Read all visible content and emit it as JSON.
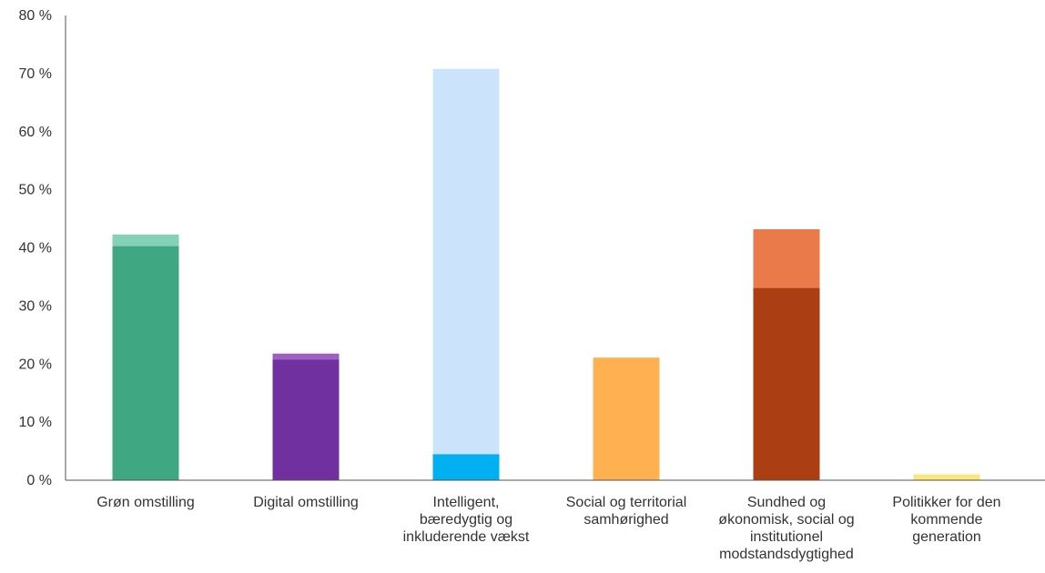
{
  "chart_data": {
    "type": "bar",
    "stacked": true,
    "grid": false,
    "ylim": [
      0,
      80
    ],
    "ytick_labels": [
      "0 %",
      "10 %",
      "20 %",
      "30 %",
      "40 %",
      "50 %",
      "60 %",
      "70 %",
      "80 %"
    ],
    "yticks": [
      0,
      10,
      20,
      30,
      40,
      50,
      60,
      70,
      80
    ],
    "categories": [
      [
        "Grøn omstilling"
      ],
      [
        "Digital omstilling"
      ],
      [
        "Intelligent,",
        "bæredygtig og",
        "inkluderende vækst"
      ],
      [
        "Social og territorial",
        "samhørighed"
      ],
      [
        "Sundhed og",
        "økonomisk, social og",
        "institutionel",
        "modstandsdygtighed"
      ],
      [
        "Politikker for den",
        "kommende",
        "generation"
      ]
    ],
    "segments": [
      [
        {
          "value": 40.3,
          "color": "#3fa882"
        },
        {
          "value": 2.0,
          "color": "#85d1b7"
        }
      ],
      [
        {
          "value": 20.8,
          "color": "#7030a0"
        },
        {
          "value": 1.0,
          "color": "#9c5fc4"
        }
      ],
      [
        {
          "value": 4.5,
          "color": "#00b0f0"
        },
        {
          "value": 66.3,
          "color": "#cce4fb"
        }
      ],
      [
        {
          "value": 21.1,
          "color": "#ffb152"
        }
      ],
      [
        {
          "value": 33.1,
          "color": "#ac3e13"
        },
        {
          "value": 10.1,
          "color": "#eb7a4b"
        }
      ],
      [
        {
          "value": 1.0,
          "color": "#fbe57c"
        }
      ]
    ]
  }
}
